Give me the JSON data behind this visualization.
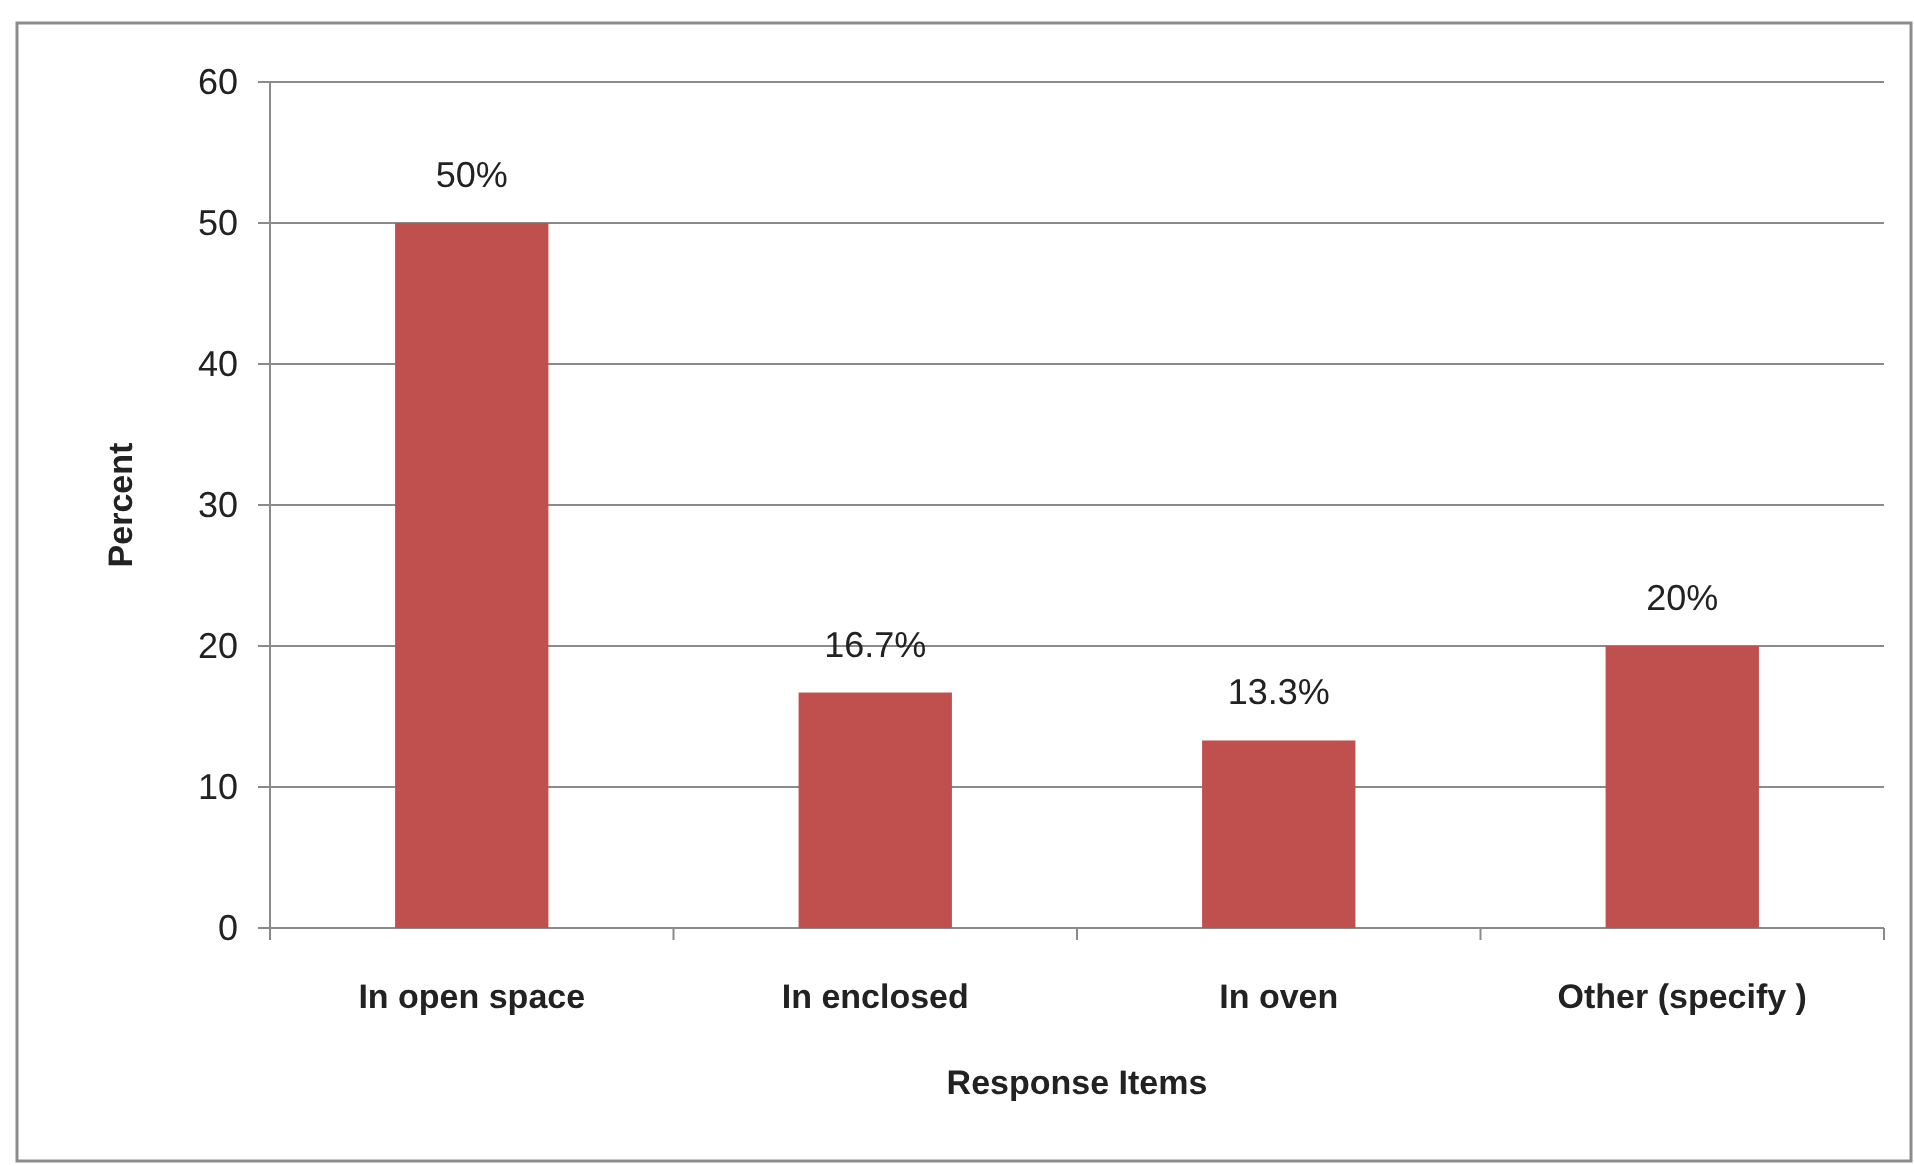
{
  "chart_data": {
    "type": "bar",
    "xlabel": "Response Items",
    "ylabel": "Percent",
    "categories": [
      "In open space",
      "In enclosed",
      "In oven",
      "Other (specify )"
    ],
    "values": [
      50,
      16.7,
      13.3,
      20
    ],
    "value_labels": [
      "50%",
      "16.7%",
      "13.3%",
      "20%"
    ],
    "color": "#c0504d",
    "ylim": [
      0,
      60
    ],
    "yticks": [
      0,
      10,
      20,
      30,
      40,
      50,
      60
    ],
    "grid": "y"
  }
}
